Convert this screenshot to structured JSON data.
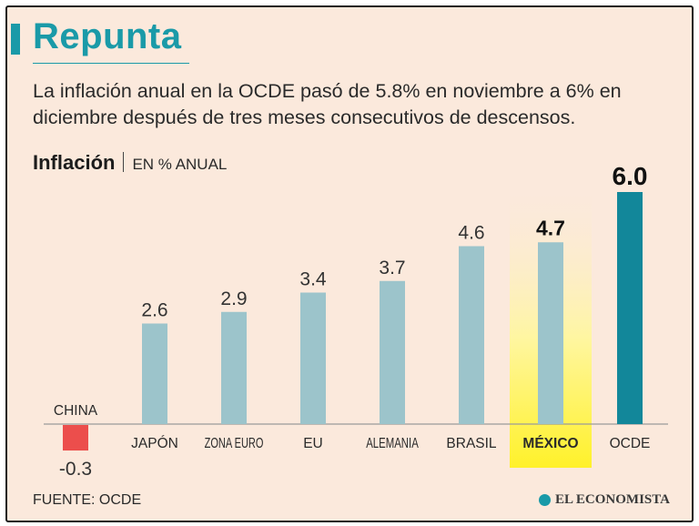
{
  "header": {
    "title": "Repunta",
    "subtitle": "La inflación anual en la OCDE pasó de 5.8% en noviembre a 6% en diciembre después de tres meses consecutivos de descensos."
  },
  "chart_heading": {
    "title": "Inflación",
    "unit": "EN % ANUAL"
  },
  "footer": {
    "source": "FUENTE:  OCDE",
    "brand": "EL ECONOMISTA"
  },
  "colors": {
    "accent": "#1a9aa8",
    "bar_default": "#9cc4cb",
    "bar_negative": "#ec4e4c",
    "bar_total": "#12879a",
    "highlight": "#fff12a"
  },
  "chart_data": {
    "type": "bar",
    "title": "Inflación",
    "ylabel": "EN % ANUAL",
    "xlabel": "",
    "categories": [
      "CHINA",
      "JAPÓN",
      "ZONA EURO",
      "EU",
      "ALEMANIA",
      "BRASIL",
      "MÉXICO",
      "OCDE"
    ],
    "values": [
      -0.3,
      2.6,
      2.9,
      3.4,
      3.7,
      4.6,
      4.7,
      6.0
    ],
    "value_labels": [
      "-0.3",
      "2.6",
      "2.9",
      "3.4",
      "3.7",
      "4.6",
      "4.7",
      "6.0"
    ],
    "highlight": "MÉXICO",
    "emphasis_bold": [
      "MÉXICO",
      "OCDE"
    ],
    "grid": false,
    "legend": "none"
  }
}
